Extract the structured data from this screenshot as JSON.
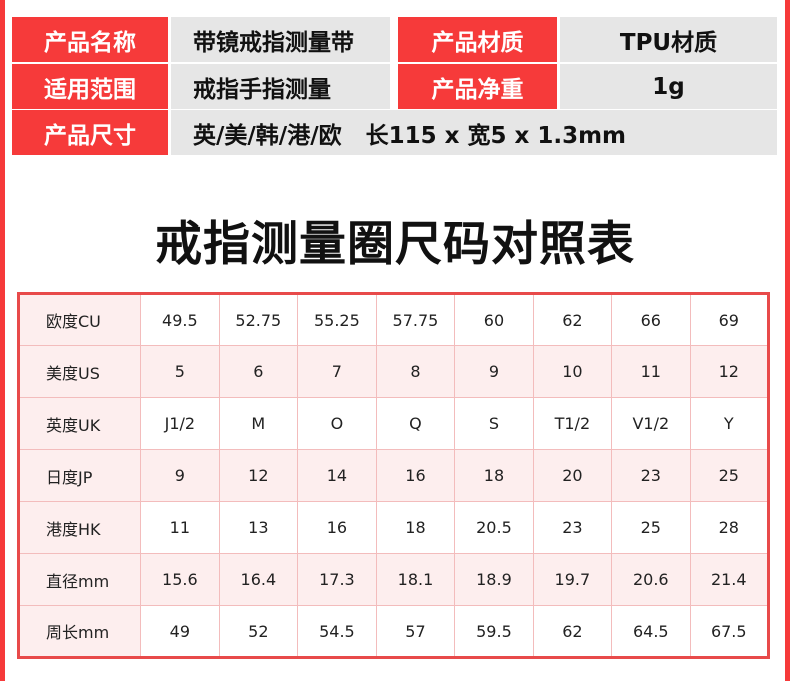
{
  "info": {
    "rows": [
      {
        "label1": "产品名称",
        "value1": "带镜戒指测量带",
        "label2": "产品材质",
        "value2": "TPU材质"
      },
      {
        "label1": "适用范围",
        "value1": "戒指手指测量",
        "label2": "产品净重",
        "value2": "1g"
      },
      {
        "label1": "产品尺寸",
        "value1": "英/美/韩/港/欧   长115 x 宽5 x 1.3mm"
      }
    ]
  },
  "title": "戒指测量圈尺码对照表",
  "table": {
    "rows": [
      {
        "label": "欧度CU",
        "values": [
          "49.5",
          "52.75",
          "55.25",
          "57.75",
          "60",
          "62",
          "66",
          "69"
        ]
      },
      {
        "label": "美度US",
        "values": [
          "5",
          "6",
          "7",
          "8",
          "9",
          "10",
          "11",
          "12"
        ]
      },
      {
        "label": "英度UK",
        "values": [
          "J1/2",
          "M",
          "O",
          "Q",
          "S",
          "T1/2",
          "V1/2",
          "Y"
        ]
      },
      {
        "label": "日度JP",
        "values": [
          "9",
          "12",
          "14",
          "16",
          "18",
          "20",
          "23",
          "25"
        ]
      },
      {
        "label": "港度HK",
        "values": [
          "11",
          "13",
          "16",
          "18",
          "20.5",
          "23",
          "25",
          "28"
        ]
      },
      {
        "label": "直径mm",
        "values": [
          "15.6",
          "16.4",
          "17.3",
          "18.1",
          "18.9",
          "19.7",
          "20.6",
          "21.4"
        ]
      },
      {
        "label": "周长mm",
        "values": [
          "49",
          "52",
          "54.5",
          "57",
          "59.5",
          "62",
          "64.5",
          "67.5"
        ]
      }
    ]
  },
  "colors": {
    "accent": "#f63a3a",
    "table_border": "#e84a4a",
    "alt_row": "#fdeeee",
    "value_bg": "#e6e6e6"
  }
}
